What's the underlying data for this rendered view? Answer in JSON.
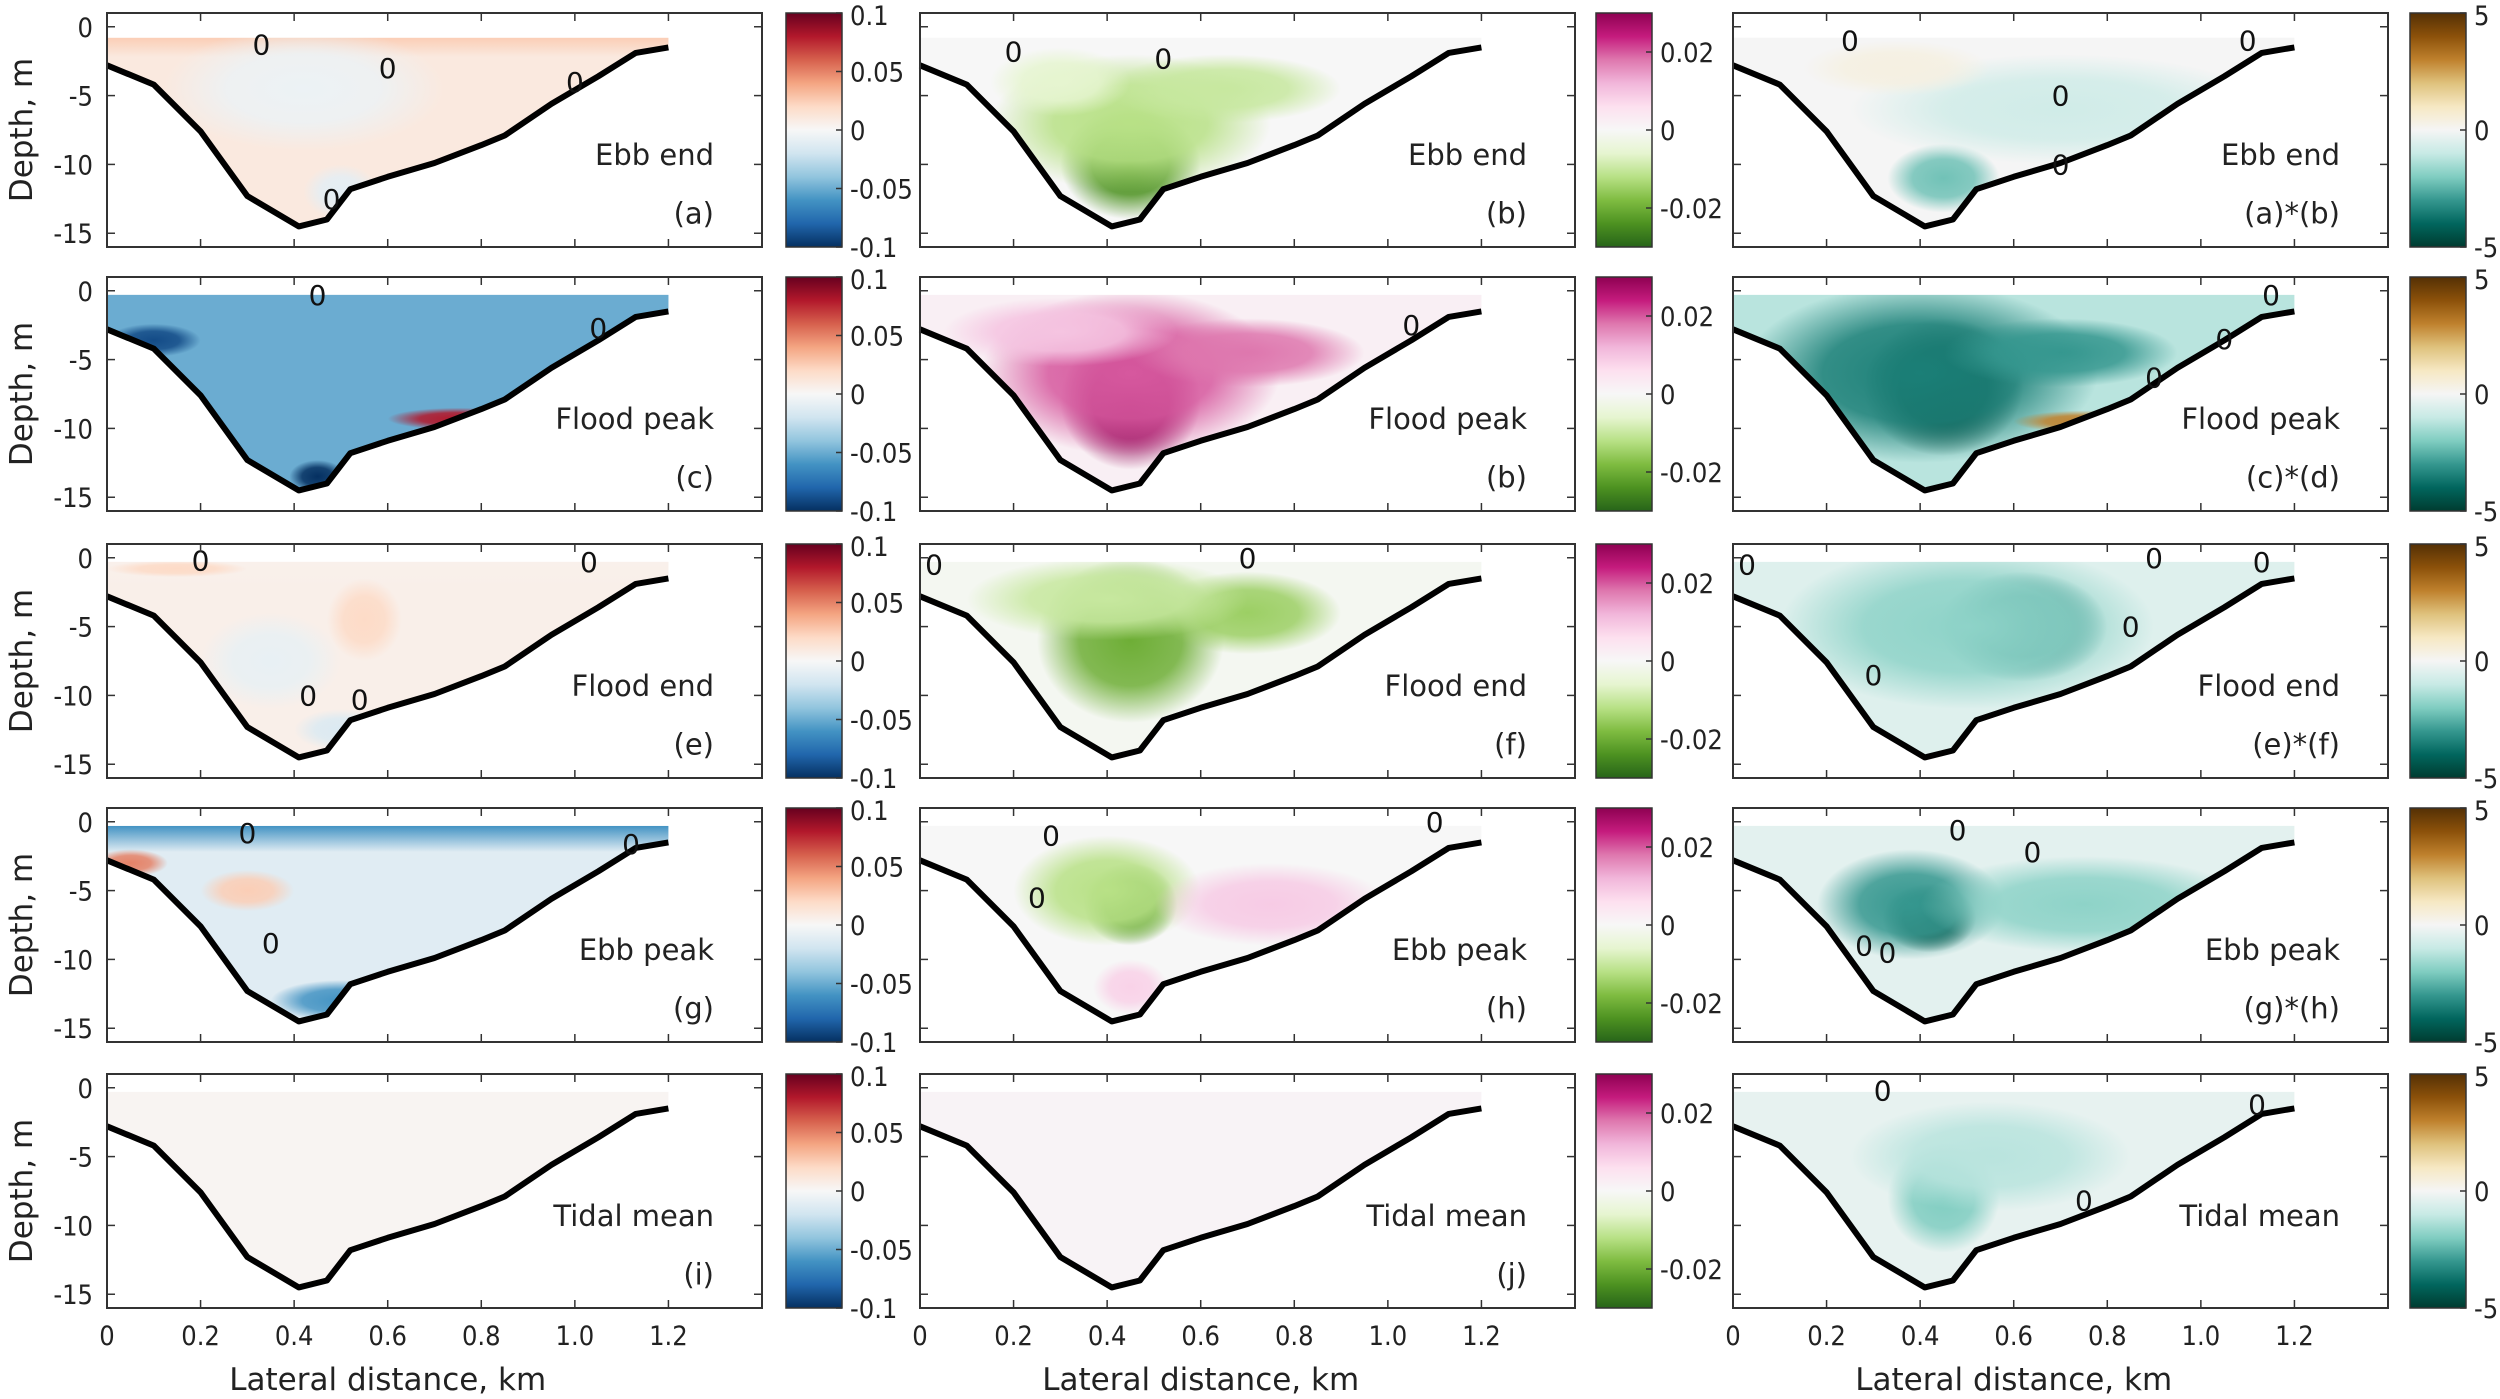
{
  "figure": {
    "ylabel": "Depth, m",
    "xlabel": "Lateral distance, km",
    "contour_label": "0"
  },
  "chart_data": {
    "type": "heatmap",
    "description_kind": "contour cross-sections",
    "xlim": [
      0,
      1.4
    ],
    "ylim": [
      -16,
      1
    ],
    "xticks": [
      "0",
      "0.2",
      "0.4",
      "0.6",
      "0.8",
      "1.0",
      "1.2"
    ],
    "xtick_values": [
      0,
      0.2,
      0.4,
      0.6,
      0.8,
      1.0,
      1.2
    ],
    "yticks": [
      "0",
      "-5",
      "-10",
      "-15"
    ],
    "ytick_values": [
      0,
      -5,
      -10,
      -15
    ],
    "bathymetry": [
      [
        0,
        -2.8
      ],
      [
        0.1,
        -4.2
      ],
      [
        0.2,
        -7.6
      ],
      [
        0.3,
        -12.3
      ],
      [
        0.41,
        -14.5
      ],
      [
        0.47,
        -14.0
      ],
      [
        0.52,
        -11.8
      ],
      [
        0.6,
        -10.9
      ],
      [
        0.7,
        -9.9
      ],
      [
        0.8,
        -8.6
      ],
      [
        0.85,
        -7.9
      ],
      [
        0.95,
        -5.6
      ],
      [
        1.05,
        -3.6
      ],
      [
        1.13,
        -1.9
      ],
      [
        1.2,
        -1.5
      ]
    ],
    "columns": [
      {
        "colormap": "RdBu",
        "clim": [
          -0.1,
          0.1
        ],
        "colorbar_ticks": [
          "0.1",
          "0.05",
          "0",
          "-0.05",
          "-0.1"
        ],
        "colorbar_tick_values": [
          0.1,
          0.05,
          0,
          -0.05,
          -0.1
        ]
      },
      {
        "colormap": "PiYG",
        "clim": [
          -0.03,
          0.03
        ],
        "colorbar_ticks": [
          "0.02",
          "0",
          "-0.02"
        ],
        "colorbar_tick_values": [
          0.02,
          0,
          -0.02
        ]
      },
      {
        "colormap": "BrBG",
        "clim": [
          -5,
          5
        ],
        "colorbar_ticks": [
          "5",
          "0",
          "-5"
        ],
        "colorbar_tick_values": [
          5,
          0,
          -5
        ]
      }
    ],
    "panels": [
      {
        "row": 0,
        "col": 0,
        "condition": "Ebb end",
        "label": "(a)",
        "base": 0.01,
        "surface": 0.025,
        "blobs": [
          [
            0.42,
            -4.5,
            0.3,
            4.5,
            -0.006
          ],
          [
            0.5,
            -12,
            0.08,
            2,
            -0.01
          ]
        ]
      },
      {
        "row": 0,
        "col": 1,
        "condition": "Ebb end",
        "label": "(b)",
        "base": 0.0,
        "surface": 0,
        "blobs": [
          [
            0.45,
            -10,
            0.15,
            4,
            -0.024
          ],
          [
            0.45,
            -7,
            0.3,
            5,
            -0.012
          ],
          [
            0.65,
            -4.5,
            0.25,
            2.5,
            -0.01
          ],
          [
            0.3,
            -4,
            0.15,
            2.5,
            -0.006
          ]
        ]
      },
      {
        "row": 0,
        "col": 2,
        "condition": "Ebb end",
        "label": "(a)*(b)",
        "base": 0.0,
        "surface": 0,
        "blobs": [
          [
            0.45,
            -11,
            0.12,
            2.5,
            -2.2
          ],
          [
            0.7,
            -6,
            0.45,
            4,
            -0.8
          ],
          [
            0.35,
            -3,
            0.2,
            2,
            0.4
          ]
        ]
      },
      {
        "row": 1,
        "col": 0,
        "condition": "Flood peak",
        "label": "(c)",
        "base": -0.05,
        "surface": -0.05,
        "blobs": [
          [
            0.1,
            -3.6,
            0.1,
            1.2,
            -0.09
          ],
          [
            0.45,
            -13.5,
            0.06,
            1.2,
            -0.1
          ],
          [
            0.75,
            -9.3,
            0.15,
            0.8,
            0.08
          ]
        ]
      },
      {
        "row": 1,
        "col": 1,
        "condition": "Flood peak",
        "label": "(b)",
        "base": 0.002,
        "surface": 0,
        "blobs": [
          [
            0.45,
            -8,
            0.15,
            5,
            0.04
          ],
          [
            0.45,
            -6,
            0.32,
            6,
            0.02
          ],
          [
            0.7,
            -4.5,
            0.25,
            2.5,
            0.018
          ],
          [
            0.3,
            -3,
            0.25,
            2.5,
            0.01
          ]
        ]
      },
      {
        "row": 1,
        "col": 2,
        "condition": "Flood peak",
        "label": "(c)*(d)",
        "base": -1.2,
        "surface": 0,
        "blobs": [
          [
            0.45,
            -7,
            0.17,
            5,
            -5.5
          ],
          [
            0.4,
            -6,
            0.38,
            6.5,
            -3.5
          ],
          [
            0.7,
            -4.5,
            0.25,
            2.5,
            -3
          ],
          [
            0.75,
            -9.5,
            0.15,
            0.8,
            3
          ]
        ]
      },
      {
        "row": 2,
        "col": 0,
        "condition": "Flood end",
        "label": "(e)",
        "base": 0.006,
        "surface": 0.005,
        "blobs": [
          [
            0.55,
            -4.5,
            0.08,
            3,
            0.02
          ],
          [
            0.15,
            -0.8,
            0.15,
            0.6,
            0.02
          ],
          [
            0.35,
            -7.5,
            0.15,
            3.5,
            -0.008
          ],
          [
            0.5,
            -12.5,
            0.1,
            1.5,
            -0.015
          ]
        ]
      },
      {
        "row": 2,
        "col": 1,
        "condition": "Flood end",
        "label": "(f)",
        "base": -0.001,
        "surface": 0,
        "blobs": [
          [
            0.45,
            -6,
            0.2,
            6,
            -0.02
          ],
          [
            0.7,
            -4,
            0.2,
            3,
            -0.015
          ],
          [
            0.4,
            -3,
            0.3,
            3,
            -0.01
          ]
        ]
      },
      {
        "row": 2,
        "col": 2,
        "condition": "Flood end",
        "label": "(e)*(f)",
        "base": -0.5,
        "surface": 0,
        "blobs": [
          [
            0.62,
            -5,
            0.18,
            4,
            -3.8
          ],
          [
            0.5,
            -5,
            0.4,
            6,
            -1.8
          ]
        ]
      },
      {
        "row": 3,
        "col": 0,
        "condition": "Ebb peak",
        "label": "(g)",
        "base": -0.012,
        "surface": -0.06,
        "blobs": [
          [
            0.3,
            -5,
            0.1,
            1.5,
            0.025
          ],
          [
            0.5,
            -13,
            0.15,
            1.5,
            -0.06
          ],
          [
            0.05,
            -3,
            0.08,
            1,
            0.05
          ]
        ]
      },
      {
        "row": 3,
        "col": 1,
        "condition": "Ebb peak",
        "label": "(h)",
        "base": 0.0,
        "surface": 0,
        "blobs": [
          [
            0.45,
            -6,
            0.1,
            3,
            -0.024
          ],
          [
            0.4,
            -5,
            0.2,
            4,
            -0.012
          ],
          [
            0.75,
            -6,
            0.25,
            3,
            0.009
          ],
          [
            0.45,
            -12,
            0.08,
            2,
            0.008
          ]
        ]
      },
      {
        "row": 3,
        "col": 2,
        "condition": "Ebb peak",
        "label": "(g)*(h)",
        "base": -0.4,
        "surface": 0,
        "blobs": [
          [
            0.42,
            -7,
            0.1,
            2.5,
            -5.5
          ],
          [
            0.38,
            -6,
            0.2,
            4,
            -3
          ],
          [
            0.75,
            -6,
            0.35,
            3.5,
            -1.8
          ]
        ]
      },
      {
        "row": 4,
        "col": 0,
        "condition": "Tidal mean",
        "label": "(i)",
        "base": 0.002,
        "surface": 0,
        "blobs": []
      },
      {
        "row": 4,
        "col": 1,
        "condition": "Tidal mean",
        "label": "(j)",
        "base": 0.001,
        "surface": 0,
        "blobs": []
      },
      {
        "row": 4,
        "col": 2,
        "condition": "Tidal mean",
        "label": "",
        "base": -0.3,
        "surface": 0,
        "blobs": [
          [
            0.45,
            -8,
            0.12,
            4,
            -2
          ],
          [
            0.55,
            -5,
            0.3,
            4,
            -1.2
          ]
        ]
      }
    ]
  }
}
